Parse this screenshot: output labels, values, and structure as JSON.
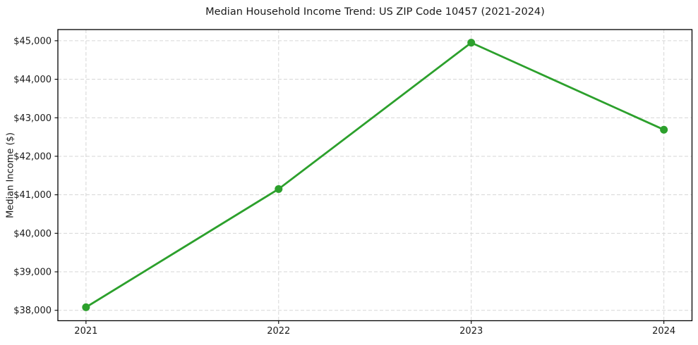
{
  "figure": {
    "title": "Median Household Income Trend: US ZIP Code 10457 (2021-2024)"
  },
  "chart_data": {
    "type": "line",
    "title": "Median Household Income Trend: US ZIP Code 10457 (2021-2024)",
    "xlabel": "",
    "ylabel": "Median Income ($)",
    "x": [
      2021,
      2022,
      2023,
      2024
    ],
    "x_tick_labels": [
      "2021",
      "2022",
      "2023",
      "2024"
    ],
    "series": [
      {
        "name": "Median Household Income",
        "values": [
          38080,
          41150,
          44950,
          42690
        ],
        "color": "#2ca02c",
        "marker": "circle",
        "marker_radius": 5.5
      }
    ],
    "y_ticks": [
      {
        "value": 38000,
        "label": "$38,000"
      },
      {
        "value": 39000,
        "label": "$39,000"
      },
      {
        "value": 40000,
        "label": "$40,000"
      },
      {
        "value": 41000,
        "label": "$41,000"
      },
      {
        "value": 42000,
        "label": "$42,000"
      },
      {
        "value": 43000,
        "label": "$43,000"
      },
      {
        "value": 44000,
        "label": "$44,000"
      },
      {
        "value": 45000,
        "label": "$45,000"
      }
    ],
    "xlim": [
      2020.854,
      2024.146
    ],
    "ylim": [
      37730,
      45290
    ],
    "grid": "dashed-both",
    "legend": "none",
    "colors": {
      "line": "#2ca02c",
      "grid": "#d6d6d6",
      "spine": "#000000",
      "text": "#1a1a1a",
      "background": "#ffffff"
    }
  }
}
